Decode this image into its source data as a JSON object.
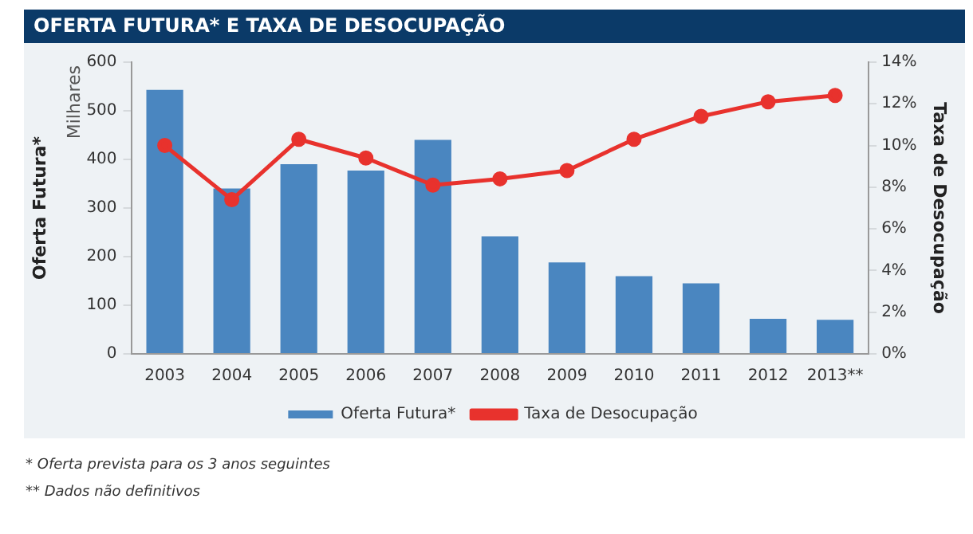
{
  "chart_data": {
    "type": "bar",
    "title": "OFERTA FUTURA* E TAXA DE DESOCUPAÇÃO",
    "categories": [
      "2003",
      "2004",
      "2005",
      "2006",
      "2007",
      "2008",
      "2009",
      "2010",
      "2011",
      "2012",
      "2013**"
    ],
    "series": [
      {
        "name": "Oferta Futura*",
        "color": "#4a86c0",
        "values": [
          543,
          340,
          390,
          377,
          440,
          242,
          188,
          160,
          145,
          72,
          70
        ]
      },
      {
        "name": "Taxa de Desocupação",
        "type": "line",
        "axis": "y2",
        "color": "#e8322d",
        "marker": "circle",
        "values": [
          10.0,
          7.4,
          10.3,
          9.4,
          8.1,
          8.4,
          8.8,
          10.3,
          11.4,
          12.1,
          12.4
        ]
      }
    ],
    "ylabel": "Oferta Futura*",
    "y2label": "Taxa de Desocupação",
    "ylim": [
      0,
      600
    ],
    "yticks": [
      0,
      100,
      200,
      300,
      400,
      500,
      600
    ],
    "y2lim": [
      0,
      14
    ],
    "y2ticks": [
      {
        "value": 0,
        "label": "0%"
      },
      {
        "value": 2,
        "label": "2%"
      },
      {
        "value": 4,
        "label": "4%"
      },
      {
        "value": 6,
        "label": "6%"
      },
      {
        "value": 8,
        "label": "8%"
      },
      {
        "value": 10,
        "label": "10%"
      },
      {
        "value": 12,
        "label": "12%"
      },
      {
        "value": 14,
        "label": "14%"
      }
    ],
    "grid": false,
    "legend": "bottom",
    "annotations": [
      "Milhares",
      "* Oferta prevista para os 3 anos seguintes",
      "** Dados não definitivos"
    ]
  }
}
